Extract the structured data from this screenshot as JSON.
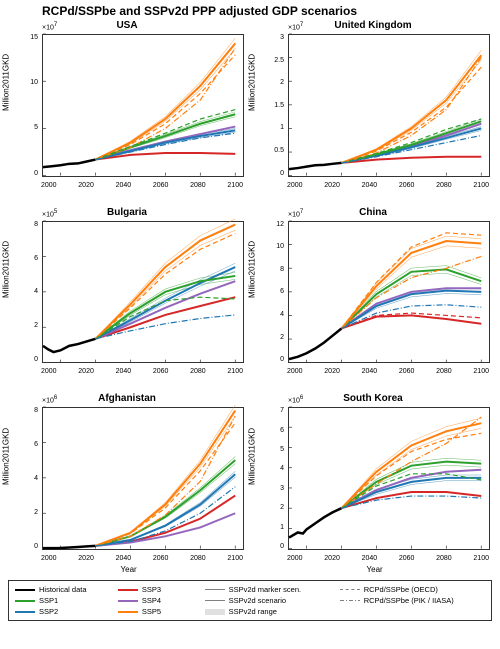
{
  "title": "RCPd/SSPbe and SSPv2d PPP adjusted GDP scenarios",
  "global": {
    "xlabel": "Year",
    "ylabel": "Million2011GKD",
    "xlim": [
      1990,
      2105
    ],
    "xticks": [
      2000,
      2020,
      2040,
      2060,
      2080,
      2100
    ],
    "background_color": "#ffffff",
    "axis_color": "#333333",
    "tick_fontsize": 7,
    "label_fontsize": 8,
    "title_fontsize": 10
  },
  "colors": {
    "historical": "#000000",
    "ssp1": "#2ca02c",
    "ssp2": "#1f77b4",
    "ssp3": "#d62728",
    "ssp4": "#9467bd",
    "ssp5": "#ff7f0e",
    "oecd": "#808080",
    "pik": "#808080",
    "range_fill": "#e0e0e0"
  },
  "linestyles": {
    "historical": {
      "width": 2.5,
      "dash": "solid"
    },
    "ssp": {
      "width": 2.0,
      "dash": "solid"
    },
    "marker_scen": {
      "width": 1.0,
      "dash": "solid"
    },
    "v2d_scen": {
      "width": 0.8,
      "dash": "solid"
    },
    "oecd": {
      "width": 1.2,
      "dash": "dashed"
    },
    "pik": {
      "width": 1.2,
      "dash": "dashdot"
    }
  },
  "legend": {
    "items": [
      {
        "label": "Historical data",
        "color": "historical",
        "style": "historical"
      },
      {
        "label": "SSP3",
        "color": "ssp3",
        "style": "ssp"
      },
      {
        "label": "SSPv2d marker scen.",
        "color": "oecd",
        "style": "marker_scen"
      },
      {
        "label": "RCPd/SSPbe (OECD)",
        "color": "oecd",
        "style": "oecd"
      },
      {
        "label": "SSP1",
        "color": "ssp1",
        "style": "ssp"
      },
      {
        "label": "SSP4",
        "color": "ssp4",
        "style": "ssp"
      },
      {
        "label": "SSPv2d scenario",
        "color": "oecd",
        "style": "v2d_scen"
      },
      {
        "label": "RCPd/SSPbe (PIK / IIASA)",
        "color": "oecd",
        "style": "pik"
      },
      {
        "label": "SSP2",
        "color": "ssp2",
        "style": "ssp"
      },
      {
        "label": "SSP5",
        "color": "ssp5",
        "style": "ssp"
      },
      {
        "label": "SSPv2d range",
        "style": "patch"
      }
    ]
  },
  "panels": [
    {
      "title": "USA",
      "exp": "×10^7",
      "ylim": [
        0,
        15
      ],
      "yticks": [
        0,
        5,
        10,
        15
      ],
      "show_xlabel": false,
      "series": {
        "historical": {
          "x": [
            1990,
            1995,
            2000,
            2005,
            2010,
            2015,
            2020
          ],
          "y": [
            0.9,
            1.0,
            1.1,
            1.25,
            1.3,
            1.5,
            1.7
          ]
        },
        "ssp1": {
          "x": [
            2020,
            2040,
            2060,
            2080,
            2100
          ],
          "y": [
            1.7,
            3.0,
            4.2,
            5.5,
            6.5
          ]
        },
        "ssp2": {
          "x": [
            2020,
            2040,
            2060,
            2080,
            2100
          ],
          "y": [
            1.7,
            2.6,
            3.5,
            4.2,
            4.8
          ]
        },
        "ssp3": {
          "x": [
            2020,
            2040,
            2060,
            2080,
            2100
          ],
          "y": [
            1.7,
            2.2,
            2.4,
            2.4,
            2.3
          ]
        },
        "ssp4": {
          "x": [
            2020,
            2040,
            2060,
            2080,
            2100
          ],
          "y": [
            1.7,
            2.7,
            3.6,
            4.4,
            5.2
          ]
        },
        "ssp5": {
          "x": [
            2020,
            2040,
            2060,
            2080,
            2100
          ],
          "y": [
            1.7,
            3.5,
            6.0,
            9.5,
            14.0
          ]
        },
        "oecd_ssp5": {
          "x": [
            2020,
            2040,
            2060,
            2080,
            2100
          ],
          "y": [
            1.7,
            3.3,
            5.5,
            8.7,
            12.8
          ]
        },
        "pik_ssp5": {
          "x": [
            2020,
            2040,
            2060,
            2080,
            2100
          ],
          "y": [
            1.7,
            3.0,
            5.0,
            8.0,
            13.5
          ]
        },
        "oecd_ssp1": {
          "x": [
            2020,
            2040,
            2060,
            2080,
            2100
          ],
          "y": [
            1.7,
            3.1,
            4.5,
            6.0,
            7.0
          ]
        },
        "pik_ssp2": {
          "x": [
            2020,
            2040,
            2060,
            2080,
            2100
          ],
          "y": [
            1.7,
            2.5,
            3.3,
            4.0,
            4.5
          ]
        }
      }
    },
    {
      "title": "United Kingdom",
      "exp": "×10^7",
      "ylim": [
        0,
        3
      ],
      "yticks": [
        0,
        0.5,
        1,
        1.5,
        2,
        2.5,
        3
      ],
      "show_xlabel": false,
      "series": {
        "historical": {
          "x": [
            1990,
            1995,
            2000,
            2005,
            2010,
            2015,
            2020
          ],
          "y": [
            0.14,
            0.16,
            0.19,
            0.22,
            0.23,
            0.25,
            0.27
          ]
        },
        "ssp1": {
          "x": [
            2020,
            2040,
            2060,
            2080,
            2100
          ],
          "y": [
            0.27,
            0.45,
            0.65,
            0.9,
            1.15
          ]
        },
        "ssp2": {
          "x": [
            2020,
            2040,
            2060,
            2080,
            2100
          ],
          "y": [
            0.27,
            0.42,
            0.6,
            0.8,
            1.0
          ]
        },
        "ssp3": {
          "x": [
            2020,
            2040,
            2060,
            2080,
            2100
          ],
          "y": [
            0.27,
            0.34,
            0.38,
            0.4,
            0.4
          ]
        },
        "ssp4": {
          "x": [
            2020,
            2040,
            2060,
            2080,
            2100
          ],
          "y": [
            0.27,
            0.43,
            0.63,
            0.85,
            1.1
          ]
        },
        "ssp5": {
          "x": [
            2020,
            2040,
            2060,
            2080,
            2100
          ],
          "y": [
            0.27,
            0.55,
            1.0,
            1.6,
            2.55
          ]
        },
        "oecd_ssp5": {
          "x": [
            2020,
            2040,
            2060,
            2080,
            2100
          ],
          "y": [
            0.27,
            0.52,
            0.92,
            1.45,
            2.3
          ]
        },
        "pik_ssp5": {
          "x": [
            2020,
            2040,
            2060,
            2080,
            2100
          ],
          "y": [
            0.27,
            0.48,
            0.85,
            1.4,
            2.5
          ]
        },
        "oecd_ssp1": {
          "x": [
            2020,
            2040,
            2060,
            2080,
            2100
          ],
          "y": [
            0.27,
            0.47,
            0.7,
            0.98,
            1.2
          ]
        },
        "pik_ssp2": {
          "x": [
            2020,
            2040,
            2060,
            2080,
            2100
          ],
          "y": [
            0.27,
            0.4,
            0.55,
            0.7,
            0.85
          ]
        }
      }
    },
    {
      "title": "Bulgaria",
      "exp": "×10^5",
      "ylim": [
        0,
        8
      ],
      "yticks": [
        0,
        2,
        4,
        6,
        8
      ],
      "show_xlabel": false,
      "series": {
        "historical": {
          "x": [
            1990,
            1993,
            1996,
            2000,
            2005,
            2010,
            2015,
            2020
          ],
          "y": [
            0.95,
            0.75,
            0.6,
            0.7,
            0.95,
            1.05,
            1.2,
            1.35
          ]
        },
        "ssp1": {
          "x": [
            2020,
            2040,
            2060,
            2080,
            2100
          ],
          "y": [
            1.35,
            2.8,
            4.0,
            4.6,
            4.9
          ]
        },
        "ssp2": {
          "x": [
            2020,
            2040,
            2060,
            2080,
            2100
          ],
          "y": [
            1.35,
            2.4,
            3.5,
            4.5,
            5.4
          ]
        },
        "ssp3": {
          "x": [
            2020,
            2040,
            2060,
            2080,
            2100
          ],
          "y": [
            1.35,
            2.0,
            2.7,
            3.2,
            3.7
          ]
        },
        "ssp4": {
          "x": [
            2020,
            2040,
            2060,
            2080,
            2100
          ],
          "y": [
            1.35,
            2.2,
            3.1,
            3.9,
            4.6
          ]
        },
        "ssp5": {
          "x": [
            2020,
            2040,
            2060,
            2080,
            2100
          ],
          "y": [
            1.35,
            3.3,
            5.4,
            6.9,
            7.8
          ]
        },
        "oecd_ssp5": {
          "x": [
            2020,
            2040,
            2060,
            2080,
            2100
          ],
          "y": [
            1.35,
            3.1,
            5.0,
            6.4,
            7.3
          ]
        },
        "pik_ssp2": {
          "x": [
            2020,
            2040,
            2060,
            2080,
            2100
          ],
          "y": [
            1.35,
            1.8,
            2.2,
            2.5,
            2.7
          ]
        },
        "oecd_ssp1": {
          "x": [
            2020,
            2040,
            2060,
            2080,
            2100
          ],
          "y": [
            1.35,
            2.6,
            3.5,
            3.7,
            3.6
          ]
        }
      }
    },
    {
      "title": "China",
      "exp": "×10^7",
      "ylim": [
        0,
        12
      ],
      "yticks": [
        0,
        2,
        4,
        6,
        8,
        10,
        12
      ],
      "show_xlabel": false,
      "series": {
        "historical": {
          "x": [
            1990,
            1995,
            2000,
            2005,
            2010,
            2015,
            2020
          ],
          "y": [
            0.3,
            0.5,
            0.8,
            1.2,
            1.7,
            2.3,
            2.9
          ]
        },
        "ssp1": {
          "x": [
            2020,
            2040,
            2060,
            2080,
            2100
          ],
          "y": [
            2.9,
            5.8,
            7.7,
            7.9,
            6.9
          ]
        },
        "ssp2": {
          "x": [
            2020,
            2040,
            2060,
            2080,
            2100
          ],
          "y": [
            2.9,
            4.8,
            5.8,
            6.1,
            6.0
          ]
        },
        "ssp3": {
          "x": [
            2020,
            2040,
            2060,
            2080,
            2100
          ],
          "y": [
            2.9,
            3.9,
            4.0,
            3.7,
            3.3
          ]
        },
        "ssp4": {
          "x": [
            2020,
            2040,
            2060,
            2080,
            2100
          ],
          "y": [
            2.9,
            5.0,
            6.0,
            6.3,
            6.3
          ]
        },
        "ssp5": {
          "x": [
            2020,
            2040,
            2060,
            2080,
            2100
          ],
          "y": [
            2.9,
            6.5,
            9.3,
            10.3,
            10.1
          ]
        },
        "oecd_ssp5": {
          "x": [
            2020,
            2040,
            2060,
            2080,
            2100
          ],
          "y": [
            2.9,
            6.8,
            9.8,
            11.0,
            10.8
          ]
        },
        "pik_ssp5": {
          "x": [
            2020,
            2040,
            2060,
            2080,
            2100
          ],
          "y": [
            2.9,
            5.5,
            7.2,
            8.0,
            9.0
          ]
        },
        "pik_ssp2": {
          "x": [
            2020,
            2040,
            2060,
            2080,
            2100
          ],
          "y": [
            2.9,
            4.2,
            4.8,
            4.9,
            4.7
          ]
        },
        "oecd_ssp3": {
          "x": [
            2020,
            2040,
            2060,
            2080,
            2100
          ],
          "y": [
            2.9,
            4.0,
            4.2,
            4.0,
            3.8
          ]
        }
      }
    },
    {
      "title": "Afghanistan",
      "exp": "×10^6",
      "ylim": [
        0,
        8
      ],
      "yticks": [
        0,
        2,
        4,
        6,
        8
      ],
      "show_xlabel": true,
      "series": {
        "historical": {
          "x": [
            1990,
            1995,
            2000,
            2005,
            2010,
            2015,
            2020
          ],
          "y": [
            0.03,
            0.03,
            0.04,
            0.06,
            0.1,
            0.13,
            0.16
          ]
        },
        "ssp1": {
          "x": [
            2020,
            2040,
            2060,
            2080,
            2100
          ],
          "y": [
            0.16,
            0.7,
            1.8,
            3.3,
            5.0
          ]
        },
        "ssp2": {
          "x": [
            2020,
            2040,
            2060,
            2080,
            2100
          ],
          "y": [
            0.16,
            0.5,
            1.3,
            2.5,
            4.2
          ]
        },
        "ssp3": {
          "x": [
            2020,
            2040,
            2060,
            2080,
            2100
          ],
          "y": [
            0.16,
            0.4,
            0.9,
            1.7,
            3.0
          ]
        },
        "ssp4": {
          "x": [
            2020,
            2040,
            2060,
            2080,
            2100
          ],
          "y": [
            0.16,
            0.35,
            0.7,
            1.2,
            2.0
          ]
        },
        "ssp5": {
          "x": [
            2020,
            2040,
            2060,
            2080,
            2100
          ],
          "y": [
            0.16,
            0.9,
            2.5,
            4.8,
            7.8
          ]
        },
        "oecd_ssp5": {
          "x": [
            2020,
            2040,
            2060,
            2080,
            2100
          ],
          "y": [
            0.16,
            0.85,
            2.3,
            4.4,
            7.1
          ]
        },
        "pik_ssp5": {
          "x": [
            2020,
            2040,
            2060,
            2080,
            2100
          ],
          "y": [
            0.16,
            0.7,
            1.9,
            3.8,
            7.5
          ]
        },
        "pik_ssp2": {
          "x": [
            2020,
            2040,
            2060,
            2080,
            2100
          ],
          "y": [
            0.16,
            0.4,
            1.0,
            2.0,
            3.5
          ]
        }
      }
    },
    {
      "title": "South Korea",
      "exp": "×10^6",
      "ylim": [
        0,
        7
      ],
      "yticks": [
        0,
        1,
        2,
        3,
        4,
        5,
        6,
        7
      ],
      "show_xlabel": true,
      "series": {
        "historical": {
          "x": [
            1990,
            1995,
            1998,
            2000,
            2005,
            2010,
            2015,
            2020
          ],
          "y": [
            0.55,
            0.8,
            0.75,
            0.95,
            1.25,
            1.55,
            1.8,
            2.0
          ]
        },
        "ssp1": {
          "x": [
            2020,
            2040,
            2060,
            2080,
            2100
          ],
          "y": [
            2.0,
            3.3,
            4.1,
            4.3,
            4.2
          ]
        },
        "ssp2": {
          "x": [
            2020,
            2040,
            2060,
            2080,
            2100
          ],
          "y": [
            2.0,
            2.8,
            3.3,
            3.5,
            3.5
          ]
        },
        "ssp3": {
          "x": [
            2020,
            2040,
            2060,
            2080,
            2100
          ],
          "y": [
            2.0,
            2.5,
            2.8,
            2.8,
            2.6
          ]
        },
        "ssp4": {
          "x": [
            2020,
            2040,
            2060,
            2080,
            2100
          ],
          "y": [
            2.0,
            2.9,
            3.5,
            3.8,
            3.9
          ]
        },
        "ssp5": {
          "x": [
            2020,
            2040,
            2060,
            2080,
            2100
          ],
          "y": [
            2.0,
            3.8,
            5.1,
            5.8,
            6.2
          ]
        },
        "oecd_ssp5": {
          "x": [
            2020,
            2040,
            2060,
            2080,
            2100
          ],
          "y": [
            2.0,
            3.6,
            4.8,
            5.4,
            5.7
          ]
        },
        "pik_ssp5": {
          "x": [
            2020,
            2040,
            2060,
            2080,
            2100
          ],
          "y": [
            2.0,
            3.2,
            4.3,
            5.2,
            6.5
          ]
        },
        "pik_ssp2": {
          "x": [
            2020,
            2040,
            2060,
            2080,
            2100
          ],
          "y": [
            2.0,
            2.4,
            2.6,
            2.6,
            2.5
          ]
        },
        "oecd_ssp1": {
          "x": [
            2020,
            2040,
            2060,
            2080,
            2100
          ],
          "y": [
            2.0,
            3.1,
            3.7,
            3.7,
            3.4
          ]
        }
      }
    }
  ]
}
